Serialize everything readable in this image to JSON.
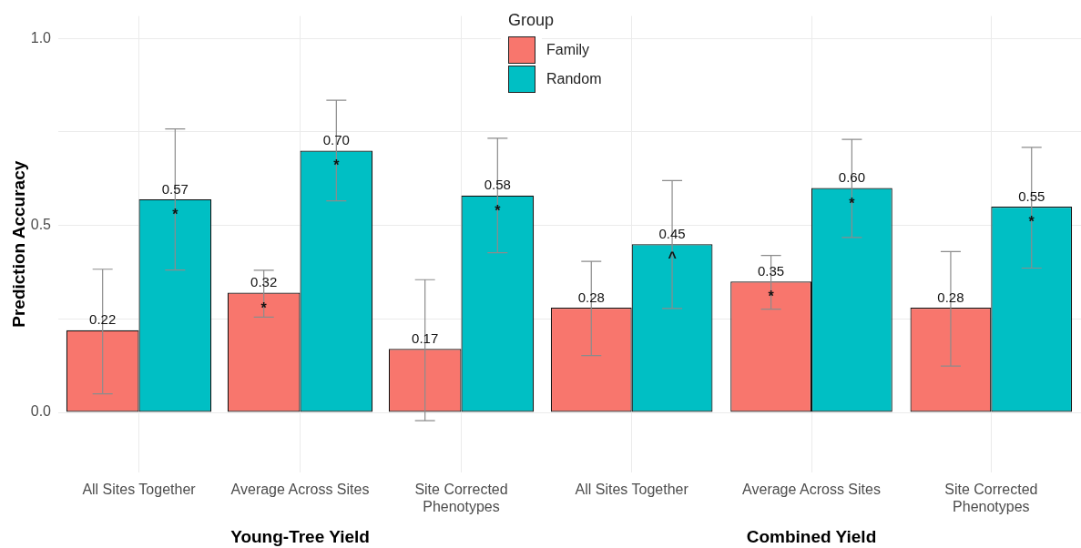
{
  "chart_data": [
    {
      "type": "bar",
      "xlabel": "Young-Tree Yield",
      "ylabel": "Prediction Accuracy",
      "legend_title": "Group",
      "legend": "top right",
      "grid": true,
      "categories": [
        "All Sites Together",
        "Average Across Sites",
        "Site Corrected\nPhenotypes"
      ],
      "ylim": [
        -0.16,
        1.06
      ],
      "yticks": [
        {
          "value": 0,
          "label": "0.0"
        },
        {
          "value": 0.25,
          "label": null
        },
        {
          "value": 0.5,
          "label": "0.5"
        },
        {
          "value": 0.75,
          "label": null
        },
        {
          "value": 1,
          "label": "1.0"
        }
      ],
      "series": [
        {
          "name": "Family",
          "color": "#f8766d",
          "values": [
            0.22,
            0.32,
            0.17
          ],
          "value_labels": [
            "0.22",
            "0.32",
            "0.17"
          ],
          "errors": [
            [
              0.05,
              0.383
            ],
            [
              0.255,
              0.38
            ],
            [
              -0.022,
              0.355
            ]
          ]
        },
        {
          "name": "Random",
          "color": "#00bfc4",
          "values": [
            0.57,
            0.7,
            0.58
          ],
          "value_labels": [
            "0.57",
            "0.70",
            "0.58"
          ],
          "errors": [
            [
              0.381,
              0.758
            ],
            [
              0.566,
              0.835
            ],
            [
              0.427,
              0.733
            ]
          ]
        }
      ],
      "annotations": [
        {
          "text": "*",
          "x": "All Sites Together",
          "y": 0.537
        },
        {
          "text": "*",
          "x": "Average Across Sites",
          "y": 0.285
        },
        {
          "text": "*",
          "x": "Average Across Sites",
          "y": 0.669
        },
        {
          "text": "*",
          "x": "Site Corrected\nPhenotypes",
          "y": 0.547
        }
      ]
    },
    {
      "type": "bar",
      "xlabel": "Combined Yield",
      "grid": true,
      "tick_labels": "x",
      "categories": [
        "All Sites Together",
        "Average Across Sites",
        "Site Corrected\nPhenotypes"
      ],
      "ylim": [
        -0.16,
        1.06
      ],
      "yticks": [
        0,
        0.25,
        0.5,
        0.75,
        1
      ],
      "series": [
        {
          "color": "#f8766d",
          "values": [
            0.28,
            0.35,
            0.28
          ],
          "value_labels": [
            "0.28",
            "0.35",
            "0.28"
          ],
          "errors": [
            [
              0.152,
              0.404
            ],
            [
              0.276,
              0.42
            ],
            [
              0.124,
              0.43
            ]
          ]
        },
        {
          "color": "#00bfc4",
          "values": [
            0.45,
            0.6,
            0.55
          ],
          "value_labels": [
            "0.45",
            "0.60",
            "0.55"
          ],
          "errors": [
            [
              0.278,
              0.62
            ],
            [
              0.468,
              0.73
            ],
            [
              0.386,
              0.709
            ]
          ]
        }
      ],
      "annotations": [
        {
          "text": "^",
          "x": "All Sites Together",
          "y": 0.417
        },
        {
          "text": "*",
          "x": "Average Across Sites",
          "y": 0.317
        },
        {
          "text": "*",
          "x": "Average Across Sites",
          "y": 0.565
        },
        {
          "text": "*",
          "x": "Site Corrected\nPhenotypes",
          "y": 0.518
        }
      ]
    }
  ]
}
